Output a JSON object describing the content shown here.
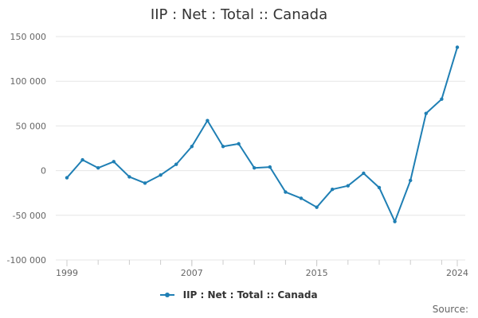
{
  "title": "IIP : Net : Total :: Canada",
  "legend": {
    "label": "IIP : Net : Total :: Canada"
  },
  "source": {
    "label": "Source:"
  },
  "colors": {
    "series": "#1f7fb4",
    "grid": "#e6e6e6",
    "axis": "#cccccc"
  },
  "chart_data": {
    "type": "line",
    "title": "IIP : Net : Total :: Canada",
    "xlabel": "",
    "ylabel": "",
    "xlim": [
      1999,
      2024
    ],
    "ylim": [
      -100000,
      150000
    ],
    "x_ticks": [
      1999,
      2007,
      2015,
      2024
    ],
    "y_ticks": [
      -100000,
      -50000,
      0,
      50000,
      100000,
      150000
    ],
    "y_tick_labels": [
      "-100 000",
      "-50 000",
      "0",
      "50 000",
      "100 000",
      "150 000"
    ],
    "grid": true,
    "legend_position": "bottom-center",
    "series": [
      {
        "name": "IIP : Net : Total :: Canada",
        "x": [
          1999,
          2000,
          2001,
          2002,
          2003,
          2004,
          2005,
          2006,
          2007,
          2008,
          2009,
          2010,
          2011,
          2012,
          2013,
          2014,
          2015,
          2016,
          2017,
          2018,
          2019,
          2020,
          2021,
          2022,
          2023,
          2024
        ],
        "values": [
          -8000,
          12000,
          3000,
          10000,
          -7000,
          -14000,
          -5000,
          7000,
          27000,
          56000,
          27000,
          30000,
          3000,
          4000,
          -24000,
          -31000,
          -41000,
          -21000,
          -17000,
          -3000,
          -19000,
          -57000,
          -11000,
          64000,
          80000,
          138000
        ]
      }
    ]
  }
}
